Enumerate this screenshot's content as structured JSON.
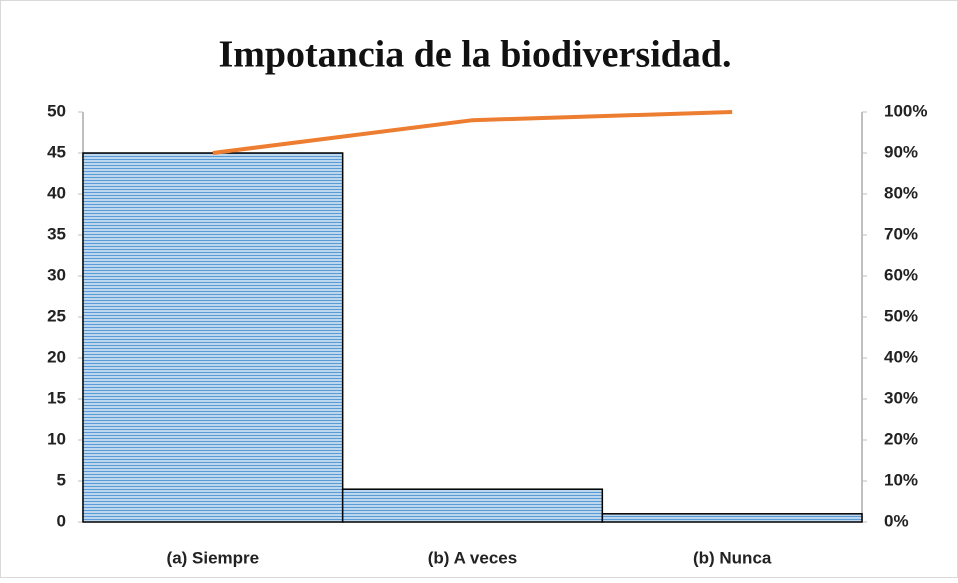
{
  "chart_data": {
    "type": "pareto",
    "title": "Impotancia de la biodiversidad.",
    "categories": [
      "(a) Siempre",
      "(b) A veces",
      "(b) Nunca"
    ],
    "series": [
      {
        "type": "bar",
        "color": "#9dc3e6",
        "values": [
          45,
          4,
          1
        ]
      },
      {
        "type": "line",
        "axis": "y2",
        "color": "#ed7d31",
        "values": [
          90,
          98,
          100
        ]
      }
    ],
    "ylim": [
      0,
      50
    ],
    "yticks": [
      0,
      5,
      10,
      15,
      20,
      25,
      30,
      35,
      40,
      45,
      50
    ],
    "y2lim": [
      0,
      100
    ],
    "y2ticks": [
      {
        "value": 0,
        "label": "0%"
      },
      {
        "value": 10,
        "label": "10%"
      },
      {
        "value": 20,
        "label": "20%"
      },
      {
        "value": 30,
        "label": "30%"
      },
      {
        "value": 40,
        "label": "40%"
      },
      {
        "value": 50,
        "label": "50%"
      },
      {
        "value": 60,
        "label": "60%"
      },
      {
        "value": 70,
        "label": "70%"
      },
      {
        "value": 80,
        "label": "80%"
      },
      {
        "value": 90,
        "label": "90%"
      },
      {
        "value": 100,
        "label": "100%"
      }
    ]
  }
}
